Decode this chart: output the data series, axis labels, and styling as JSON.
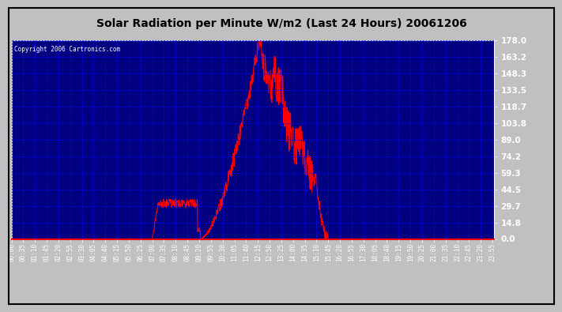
{
  "title": "Solar Radiation per Minute W/m2 (Last 24 Hours) 20061206",
  "copyright": "Copyright 2006 Cartronics.com",
  "outer_bg": "#c0c0c0",
  "plot_bg_color": "#000080",
  "line_color": "#ff0000",
  "grid_color": "#0000ff",
  "title_color": "#000000",
  "plot_text_color": "#ffffff",
  "yticks": [
    0.0,
    14.8,
    29.7,
    44.5,
    59.3,
    74.2,
    89.0,
    103.8,
    118.7,
    133.5,
    148.3,
    163.2,
    178.0
  ],
  "ymax": 178.0,
  "ymin": 0.0,
  "xtick_labels": [
    "00:00",
    "00:35",
    "01:10",
    "01:45",
    "02:20",
    "02:55",
    "03:30",
    "04:05",
    "04:40",
    "05:15",
    "05:50",
    "06:25",
    "07:00",
    "07:35",
    "08:10",
    "08:45",
    "09:20",
    "09:55",
    "10:30",
    "11:05",
    "11:40",
    "12:15",
    "12:50",
    "13:25",
    "14:00",
    "14:35",
    "15:10",
    "15:45",
    "16:20",
    "16:55",
    "17:30",
    "18:05",
    "18:40",
    "19:15",
    "19:50",
    "20:25",
    "21:00",
    "21:35",
    "22:10",
    "22:45",
    "23:20",
    "23:55"
  ]
}
